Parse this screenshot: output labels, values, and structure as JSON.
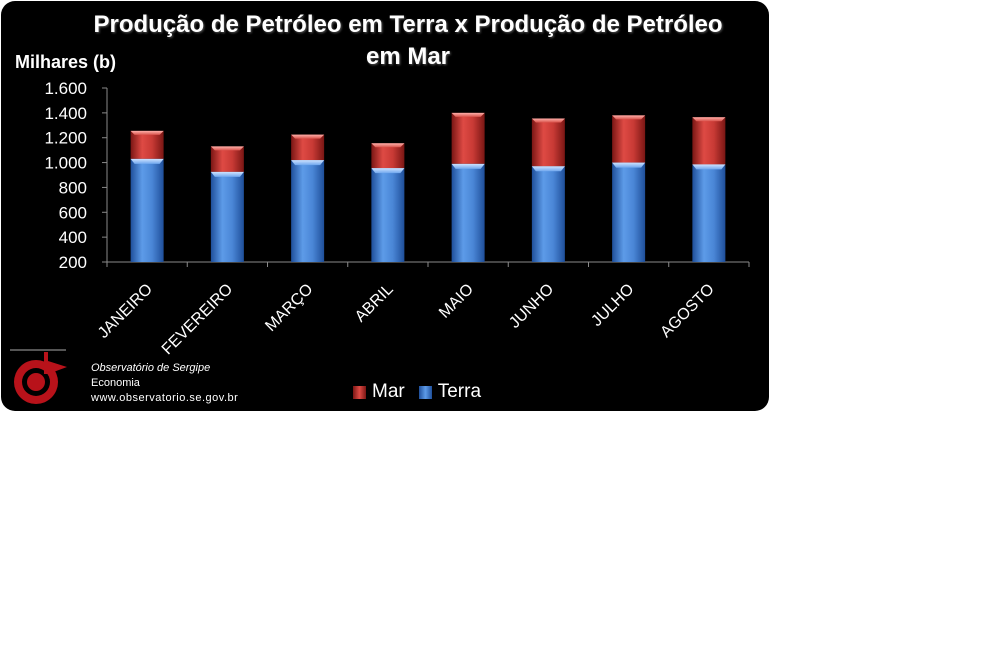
{
  "chart_data": {
    "type": "bar",
    "stacked": true,
    "title": "Produção de Petróleo em Terra x Produção de Petróleo em Mar",
    "ylabel": "Milhares (b)",
    "xlabel": "",
    "categories": [
      "JANEIRO",
      "FEVEREIRO",
      "MARÇO",
      "ABRIL",
      "MAIO",
      "JUNHO",
      "JULHO",
      "AGOSTO"
    ],
    "series": [
      {
        "name": "Terra",
        "color": "#3f7fd4",
        "values": [
          1030,
          925,
          1020,
          955,
          990,
          970,
          1000,
          985
        ]
      },
      {
        "name": "Mar",
        "color": "#c8302c",
        "values": [
          225,
          205,
          205,
          200,
          410,
          385,
          380,
          380
        ]
      }
    ],
    "ylim": [
      200,
      1600
    ],
    "yticks": [
      "1.600",
      "1.400",
      "1.200",
      "1.000",
      "800",
      "600",
      "400",
      "200"
    ],
    "ytick_values": [
      1600,
      1400,
      1200,
      1000,
      800,
      600,
      400,
      200
    ],
    "legend_position": "bottom",
    "legend": [
      "Mar",
      "Terra"
    ],
    "grid": false,
    "background": "#000000"
  },
  "footer": {
    "org": "Observatório de Sergipe",
    "dept": "Economia",
    "url": "www.observatorio.se.gov.br",
    "logo_icon": "observatorio-logo-icon"
  }
}
